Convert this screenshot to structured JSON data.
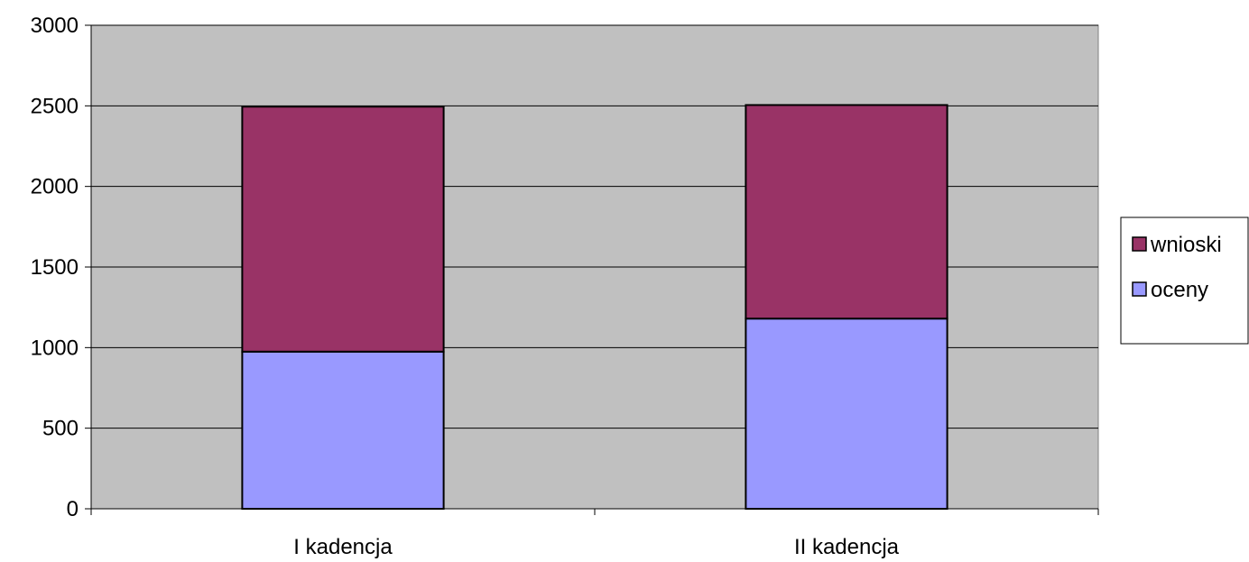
{
  "chart_data": {
    "type": "bar",
    "stacked": true,
    "categories": [
      "I kadencja",
      "II kadencja"
    ],
    "series": [
      {
        "name": "oceny",
        "values": [
          975,
          1180
        ],
        "color": "#9999FF"
      },
      {
        "name": "wnioski",
        "values": [
          1520,
          1325
        ],
        "color": "#993366"
      }
    ],
    "ylim": [
      0,
      3000
    ],
    "yticks": [
      0,
      500,
      1000,
      1500,
      2000,
      2500,
      3000
    ],
    "grid": true,
    "plot_background": "#C0C0C0",
    "legend_position": "right",
    "legend_order": [
      "wnioski",
      "oceny"
    ]
  }
}
